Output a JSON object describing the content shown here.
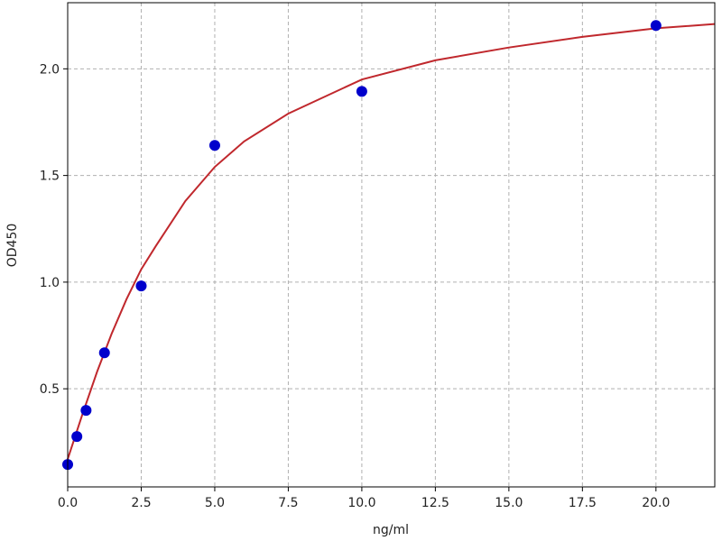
{
  "chart_data": {
    "type": "scatter",
    "x_label": "ng/ml",
    "y_label": "OD450",
    "xlim": [
      0,
      22
    ],
    "ylim": [
      0.04,
      2.31
    ],
    "xticks": [
      {
        "value": 0,
        "label": "0.0"
      },
      2.5,
      {
        "value": 5,
        "label": "5.0"
      },
      7.5,
      {
        "value": 10,
        "label": "10.0"
      },
      12.5,
      {
        "value": 15,
        "label": "15.0"
      },
      17.5,
      {
        "value": 20,
        "label": "20.0"
      }
    ],
    "yticks": [
      0.5,
      {
        "value": 1,
        "label": "1.0"
      },
      1.5,
      {
        "value": 2,
        "label": "2.0"
      }
    ],
    "grid": true,
    "series": [
      {
        "type": "line",
        "color": "#c0282d",
        "x": [
          0,
          0.5,
          1,
          1.5,
          2,
          2.5,
          3,
          4,
          5,
          6,
          7.5,
          10,
          12.5,
          15,
          17.5,
          20,
          22
        ],
        "values": [
          0.17,
          0.38,
          0.58,
          0.76,
          0.92,
          1.06,
          1.17,
          1.38,
          1.54,
          1.66,
          1.79,
          1.95,
          2.04,
          2.1,
          2.15,
          2.19,
          2.21
        ]
      },
      {
        "type": "scatter",
        "color": "#0000cc",
        "x": [
          0,
          0.3125,
          0.625,
          1.25,
          2.5,
          5,
          10,
          20
        ],
        "values": [
          0.145,
          0.276,
          0.399,
          0.669,
          0.982,
          1.641,
          1.894,
          2.203
        ]
      }
    ]
  }
}
